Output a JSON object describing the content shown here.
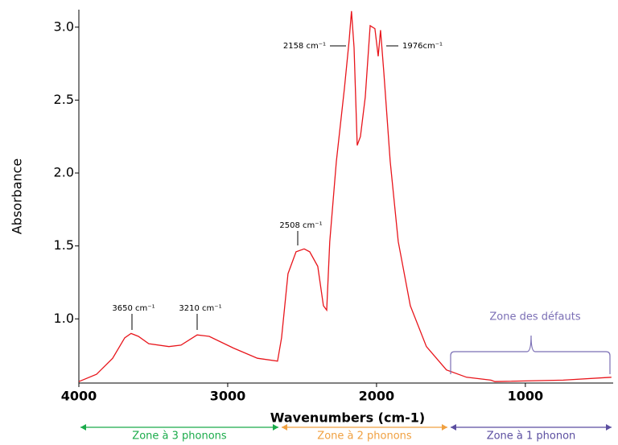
{
  "chart_data": {
    "type": "line",
    "x_label": "Wavenumbers (cm-1)",
    "y_label": "Absorbance",
    "xlim": [
      4000,
      410
    ],
    "ylim": [
      0.56,
      3.12
    ],
    "xticks": [
      4000,
      3000,
      2000,
      1000
    ],
    "yticks": [
      {
        "value": 1,
        "label": "1.0"
      },
      1.5,
      {
        "value": 2,
        "label": "2.0"
      },
      2.5,
      {
        "value": 3,
        "label": "3.0"
      }
    ],
    "x": [
      4000,
      3881,
      3773,
      3692,
      3649,
      3600,
      3530,
      3395,
      3314,
      3205,
      3124,
      2962,
      2800,
      2665,
      2638,
      2595,
      2541,
      2486,
      2449,
      2395,
      2357,
      2335,
      2314,
      2270,
      2216,
      2184,
      2168,
      2151,
      2130,
      2108,
      2076,
      2043,
      2011,
      1989,
      1973,
      1951,
      1908,
      1854,
      1773,
      1665,
      1530,
      1395,
      1232,
      1205,
      746,
      422
    ],
    "series": [
      {
        "color": "#e8151b",
        "values": [
          0.57,
          0.62,
          0.73,
          0.87,
          0.9,
          0.88,
          0.83,
          0.81,
          0.82,
          0.89,
          0.88,
          0.8,
          0.73,
          0.71,
          0.87,
          1.31,
          1.46,
          1.48,
          1.46,
          1.36,
          1.09,
          1.06,
          1.53,
          2.08,
          2.58,
          2.91,
          3.11,
          2.86,
          2.19,
          2.25,
          2.52,
          3.01,
          2.99,
          2.8,
          2.98,
          2.69,
          2.08,
          1.53,
          1.09,
          0.81,
          0.65,
          0.6,
          0.58,
          0.57,
          0.58,
          0.6
        ]
      }
    ],
    "annotations": [
      "3650 cm⁻¹",
      "3210 cm⁻¹",
      "2508 cm⁻¹",
      "2158 cm⁻¹",
      "1976cm⁻¹"
    ],
    "zones": [
      {
        "name": "Zone à 3 phonons",
        "color": "#1aab4a"
      },
      {
        "name": "Zone à 2 phonons",
        "color": "#f0a040"
      },
      {
        "name": "Zone à 1 phonon",
        "color": "#5b4ea0"
      }
    ],
    "defect_zone": {
      "name": "Zone des défauts",
      "color": "#7b6fb5"
    }
  }
}
